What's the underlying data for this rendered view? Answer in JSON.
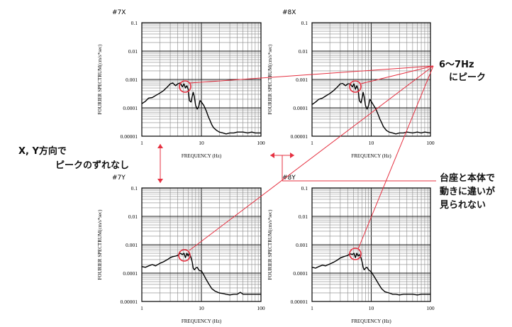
{
  "annotations": {
    "peak_freq": "6〜7Hz",
    "peak_label": "にピーク",
    "xy_line1": "X, Y方向で",
    "xy_line2": "ピークのずれなし",
    "base_line1": "台座と本体で",
    "base_line2": "動きに違いが",
    "base_line3": "見られない"
  },
  "colors": {
    "annotation": "#e53040",
    "curve": "#000000",
    "grid": "#888888"
  },
  "chart_data": [
    {
      "type": "line",
      "title": "#7X",
      "scale": "log-log",
      "xlabel": "FREQUENCY (Hz)",
      "ylabel": "FOURIER SPECTRUM(cm/s*sec)",
      "xlim": [
        1,
        100
      ],
      "ylim": [
        1e-05,
        0.1
      ],
      "x_ticks": [
        "1",
        "10",
        "100"
      ],
      "y_ticks": [
        "0.00001",
        "0.0001",
        "0.001",
        "0.01",
        "0.1"
      ],
      "grid": true,
      "series": [
        {
          "x": [
            1,
            1.15,
            1.3,
            1.5,
            1.7,
            2.0,
            2.3,
            2.7,
            3.0,
            3.3,
            3.7,
            4.0,
            4.4,
            4.8,
            5.1,
            5.4,
            5.7,
            6.0,
            6.3,
            6.7,
            7.0,
            7.3,
            7.6,
            8.0,
            8.5,
            9.0,
            9.5,
            10.0,
            11,
            12,
            13,
            14,
            15,
            16,
            18,
            20,
            23,
            26,
            30,
            35,
            40,
            50,
            60,
            70,
            80,
            100
          ],
          "y": [
            0.00014,
            0.00017,
            0.00022,
            0.00023,
            0.00027,
            0.00033,
            0.0004,
            0.00055,
            0.0007,
            0.00075,
            0.0006,
            0.0007,
            0.00075,
            0.00055,
            0.0007,
            0.0005,
            0.0006,
            0.00045,
            0.00018,
            0.00016,
            0.00025,
            0.00035,
            0.00025,
            0.00012,
            9e-05,
            0.00011,
            0.00018,
            0.00016,
            0.00012,
            8e-05,
            5e-05,
            3.5e-05,
            2.5e-05,
            2e-05,
            1.6e-05,
            1.4e-05,
            1.3e-05,
            1.2e-05,
            1.3e-05,
            1.3e-05,
            1.4e-05,
            1.4e-05,
            1.3e-05,
            1.4e-05,
            1.3e-05,
            1.3e-05
          ]
        }
      ]
    },
    {
      "type": "line",
      "title": "#8X",
      "scale": "log-log",
      "xlabel": "FREQUENCY (Hz)",
      "ylabel": "FOURIER SPECTRUM(cm/s*sec)",
      "xlim": [
        1,
        100
      ],
      "ylim": [
        1e-05,
        0.1
      ],
      "x_ticks": [
        "1",
        "10",
        "100"
      ],
      "y_ticks": [
        "0.00001",
        "0.0001",
        "0.001",
        "0.01",
        "0.1"
      ],
      "grid": true,
      "series": [
        {
          "x": [
            1,
            1.15,
            1.3,
            1.5,
            1.7,
            2.0,
            2.3,
            2.7,
            3.0,
            3.3,
            3.7,
            4.0,
            4.4,
            4.8,
            5.1,
            5.4,
            5.7,
            6.0,
            6.3,
            6.7,
            7.0,
            7.3,
            7.6,
            8.0,
            8.5,
            9.0,
            9.5,
            10.0,
            11,
            12,
            13,
            14,
            15,
            16,
            18,
            20,
            23,
            26,
            30,
            35,
            40,
            50,
            60,
            70,
            80,
            100
          ],
          "y": [
            0.00013,
            0.00016,
            0.0002,
            0.00022,
            0.00026,
            0.00032,
            0.0004,
            0.00055,
            0.0007,
            0.00072,
            0.0006,
            0.0007,
            0.0007,
            0.00055,
            0.0007,
            0.00045,
            0.0006,
            0.00045,
            0.00018,
            0.00015,
            0.00022,
            0.00035,
            0.00025,
            0.00012,
            9e-05,
            0.00012,
            0.0002,
            0.00017,
            0.00012,
            9e-05,
            6e-05,
            4e-05,
            3e-05,
            2.2e-05,
            1.6e-05,
            1.4e-05,
            1.3e-05,
            1.2e-05,
            1.3e-05,
            1.3e-05,
            1.4e-05,
            1.3e-05,
            1.4e-05,
            1.3e-05,
            1.4e-05,
            1.3e-05
          ]
        }
      ]
    },
    {
      "type": "line",
      "title": "#7Y",
      "scale": "log-log",
      "xlabel": "FREQUENCY (Hz)",
      "ylabel": "FOURIER SPECTRUM(cm/s*sec)",
      "xlim": [
        1,
        100
      ],
      "ylim": [
        1e-05,
        0.1
      ],
      "x_ticks": [
        "1",
        "10",
        "100"
      ],
      "y_ticks": [
        "0.00001",
        "0.0001",
        "0.001",
        "0.01",
        "0.1"
      ],
      "grid": true,
      "series": [
        {
          "x": [
            1,
            1.15,
            1.3,
            1.5,
            1.7,
            2.0,
            2.3,
            2.7,
            3.0,
            3.3,
            3.7,
            4.0,
            4.4,
            4.8,
            5.1,
            5.4,
            5.7,
            6.0,
            6.3,
            6.7,
            7.0,
            7.3,
            7.6,
            8.0,
            8.5,
            9.0,
            9.5,
            10.0,
            11,
            12,
            13,
            14,
            15,
            17,
            20,
            23,
            26,
            30,
            35,
            40,
            45,
            50,
            60,
            70,
            80,
            100
          ],
          "y": [
            0.00017,
            0.00016,
            0.00018,
            0.0002,
            0.00018,
            0.00022,
            0.00025,
            0.0003,
            0.00035,
            0.00038,
            0.0004,
            0.00042,
            0.0005,
            0.00045,
            0.0005,
            0.00035,
            0.0005,
            0.0004,
            0.0005,
            0.00035,
            0.00025,
            0.00015,
            0.00013,
            0.00015,
            0.00016,
            0.00013,
            0.00012,
            0.00012,
            8.5e-05,
            6e-05,
            4.5e-05,
            3.5e-05,
            2.8e-05,
            2.3e-05,
            2e-05,
            1.9e-05,
            1.8e-05,
            1.7e-05,
            1.8e-05,
            1.8e-05,
            2.1e-05,
            1.8e-05,
            1.8e-05,
            1.8e-05,
            1.8e-05,
            1.8e-05
          ]
        }
      ]
    },
    {
      "type": "line",
      "title": "#8Y",
      "scale": "log-log",
      "xlabel": "FREQUENCY (Hz)",
      "ylabel": "FOURIER SPECTRUM(cm/s*sec)",
      "xlim": [
        1,
        100
      ],
      "ylim": [
        1e-05,
        0.1
      ],
      "x_ticks": [
        "1",
        "10",
        "100"
      ],
      "y_ticks": [
        "0.00001",
        "0.0001",
        "0.001",
        "0.01",
        "0.1"
      ],
      "grid": true,
      "series": [
        {
          "x": [
            1,
            1.15,
            1.3,
            1.5,
            1.7,
            2.0,
            2.3,
            2.7,
            3.0,
            3.3,
            3.7,
            4.0,
            4.4,
            4.8,
            5.1,
            5.4,
            5.7,
            6.0,
            6.3,
            6.7,
            7.0,
            7.3,
            7.6,
            8.0,
            8.5,
            9.0,
            9.5,
            10.0,
            11,
            12,
            13,
            14,
            15,
            17,
            20,
            23,
            26,
            30,
            35,
            40,
            45,
            50,
            60,
            70,
            80,
            100
          ],
          "y": [
            0.00016,
            0.00015,
            0.00017,
            0.00019,
            0.00018,
            0.00021,
            0.00024,
            0.00029,
            0.00034,
            0.00037,
            0.0004,
            0.00042,
            0.00048,
            0.00045,
            0.0005,
            0.00035,
            0.0005,
            0.0004,
            0.00045,
            0.00035,
            0.00025,
            0.00016,
            0.00013,
            0.00015,
            0.00016,
            0.00013,
            0.00012,
            0.00011,
            8e-05,
            6e-05,
            4.5e-05,
            3.5e-05,
            2.8e-05,
            2.2e-05,
            2e-05,
            1.8e-05,
            1.8e-05,
            1.7e-05,
            1.8e-05,
            1.8e-05,
            1.8e-05,
            1.8e-05,
            1.7e-05,
            1.8e-05,
            1.8e-05,
            1.8e-05
          ]
        }
      ]
    }
  ]
}
